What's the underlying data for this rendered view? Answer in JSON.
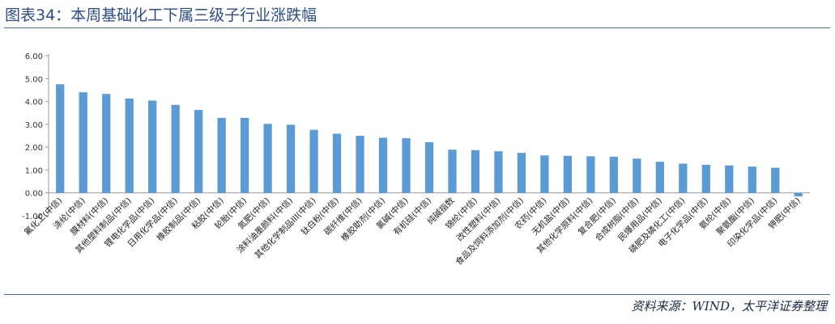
{
  "title": "图表34：本周基础化工下属三级子行业涨跌幅",
  "source": "资料来源：WIND，太平洋证券整理",
  "colors": {
    "bar": "#5b9bd5",
    "axis": "#999999",
    "heading": "#2b4d87"
  },
  "chart_data": {
    "type": "bar",
    "title": "",
    "xlabel": "",
    "ylabel": "",
    "ylim": [
      -1.0,
      6.0
    ],
    "yticks": [
      "-1.00",
      "0.00",
      "1.00",
      "2.00",
      "3.00",
      "4.00",
      "5.00",
      "6.00"
    ],
    "grid": false,
    "categories": [
      "氟化工(中信)",
      "涤纶(中信)",
      "膜材料(中信)",
      "其他塑料制品(中信)",
      "锂电化学品(中信)",
      "日用化学品(中信)",
      "橡胶制品(中信)",
      "粘胶(中信)",
      "轮胎(中信)",
      "氮肥(中信)",
      "涂料油墨颜料(中信)",
      "其他化学制品III(中信)",
      "钛白粉(中信)",
      "碳纤维(中信)",
      "橡胶助剂(中信)",
      "氯碱(中信)",
      "有机硅(中信)",
      "纯碱指数",
      "锦纶(中信)",
      "改性塑料(中信)",
      "食品及饲料添加剂(中信)",
      "农药(中信)",
      "无机盐(中信)",
      "其他化学原料(中信)",
      "复合肥(中信)",
      "合成树脂(中信)",
      "民爆用品(中信)",
      "磷肥及磷化工(中信)",
      "电子化学品(中信)",
      "氨纶(中信)",
      "聚氨酯(中信)",
      "印染化学品(中信)",
      "钾肥(中信)"
    ],
    "values": [
      4.75,
      4.4,
      4.33,
      4.13,
      4.04,
      3.85,
      3.63,
      3.28,
      3.28,
      3.02,
      2.98,
      2.76,
      2.59,
      2.5,
      2.41,
      2.39,
      2.22,
      1.89,
      1.87,
      1.82,
      1.75,
      1.64,
      1.62,
      1.6,
      1.58,
      1.5,
      1.36,
      1.28,
      1.23,
      1.2,
      1.15,
      1.1,
      -0.15
    ]
  }
}
